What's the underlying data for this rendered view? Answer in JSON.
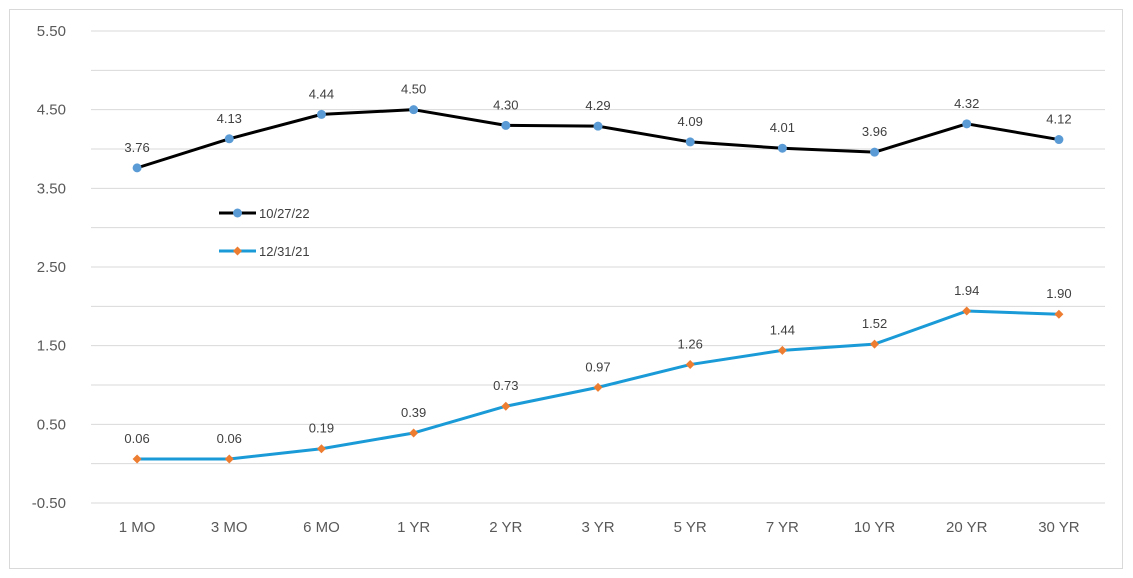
{
  "chart_data": {
    "type": "line",
    "categories": [
      "1 MO",
      "3 MO",
      "6 MO",
      "1 YR",
      "2 YR",
      "3 YR",
      "5 YR",
      "7 YR",
      "10 YR",
      "20 YR",
      "30 YR"
    ],
    "series": [
      {
        "name": "10/27/22",
        "values": [
          3.76,
          4.13,
          4.44,
          4.5,
          4.3,
          4.29,
          4.09,
          4.01,
          3.96,
          4.32,
          4.12
        ],
        "labels": [
          "3.76",
          "4.13",
          "4.44",
          "4.50",
          "4.30",
          "4.29",
          "4.09",
          "4.01",
          "3.96",
          "4.32",
          "4.12"
        ],
        "line_color": "#000000",
        "marker_color": "#5b9bd5",
        "marker": "circle"
      },
      {
        "name": "12/31/21",
        "values": [
          0.06,
          0.06,
          0.19,
          0.39,
          0.73,
          0.97,
          1.26,
          1.44,
          1.52,
          1.94,
          1.9
        ],
        "labels": [
          "0.06",
          "0.06",
          "0.19",
          "0.39",
          "0.73",
          "0.97",
          "1.26",
          "1.44",
          "1.52",
          "1.94",
          "1.90"
        ],
        "line_color": "#1a9bd7",
        "marker_color": "#ed7d31",
        "marker": "diamond"
      }
    ],
    "y_ticks": [
      "5.50",
      "4.50",
      "3.50",
      "2.50",
      "1.50",
      "0.50",
      "-0.50"
    ],
    "ylim": [
      -0.5,
      5.5
    ],
    "grid": true,
    "legend_position": "inside-left",
    "title": "",
    "xlabel": "",
    "ylabel": ""
  }
}
